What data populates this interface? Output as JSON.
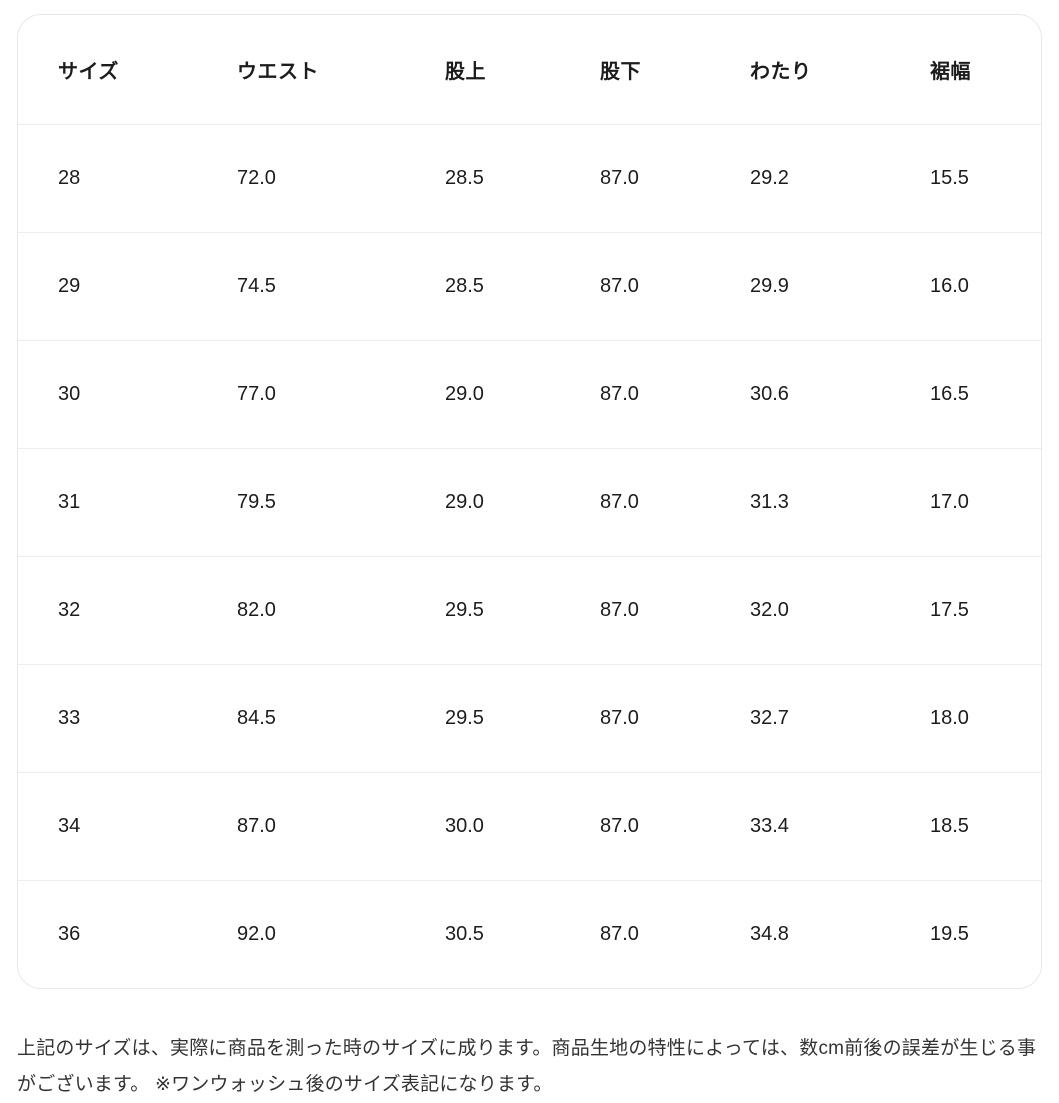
{
  "table": {
    "headers": [
      "サイズ",
      "ウエスト",
      "股上",
      "股下",
      "わたり",
      "裾幅"
    ],
    "rows": [
      [
        "28",
        "72.0",
        "28.5",
        "87.0",
        "29.2",
        "15.5"
      ],
      [
        "29",
        "74.5",
        "28.5",
        "87.0",
        "29.9",
        "16.0"
      ],
      [
        "30",
        "77.0",
        "29.0",
        "87.0",
        "30.6",
        "16.5"
      ],
      [
        "31",
        "79.5",
        "29.0",
        "87.0",
        "31.3",
        "17.0"
      ],
      [
        "32",
        "82.0",
        "29.5",
        "87.0",
        "32.0",
        "17.5"
      ],
      [
        "33",
        "84.5",
        "29.5",
        "87.0",
        "32.7",
        "18.0"
      ],
      [
        "34",
        "87.0",
        "30.0",
        "87.0",
        "33.4",
        "18.5"
      ],
      [
        "36",
        "92.0",
        "30.5",
        "87.0",
        "34.8",
        "19.5"
      ]
    ]
  },
  "footnote": {
    "text": "上記のサイズは、実際に商品を測った時のサイズに成ります。商品生地の特性によっては、数cm前後の誤差が生じる事がございます。 ※ワンウォッシュ後のサイズ表記になります。"
  },
  "colors": {
    "background": "#ffffff",
    "card_border": "#e8e8e8",
    "row_divider": "#ededed",
    "header_text": "#1c1c1c",
    "cell_text": "#1c1c1c",
    "note_text": "#333333"
  }
}
